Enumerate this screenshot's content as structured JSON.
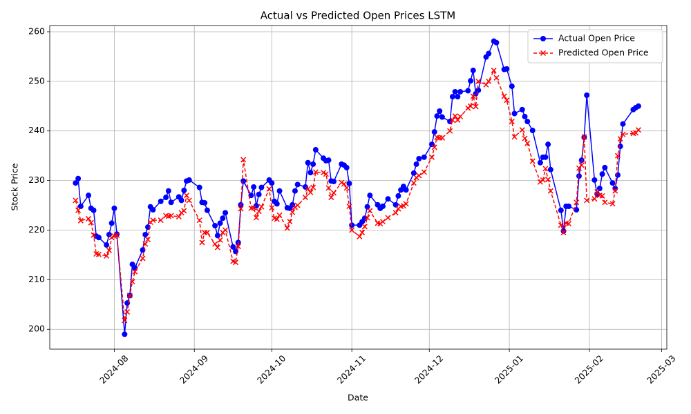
{
  "chart_data": {
    "type": "line",
    "title": "Actual vs Predicted Open Prices LSTM",
    "x_label": "Date",
    "y_label": "Stock Price",
    "grid": true,
    "legend": "upper right",
    "xlim": [
      "2024-07-07",
      "2025-03-03"
    ],
    "xticks": [
      {
        "value": "2024-08-01",
        "label": "2024-08"
      },
      {
        "value": "2024-09-01",
        "label": "2024-09"
      },
      {
        "value": "2024-10-01",
        "label": "2024-10"
      },
      {
        "value": "2024-11-01",
        "label": "2024-11"
      },
      {
        "value": "2024-12-01",
        "label": "2024-12"
      },
      {
        "value": "2025-01-01",
        "label": "2025-01"
      },
      {
        "value": "2025-02-01",
        "label": "2025-02"
      },
      {
        "value": "2025-03-01",
        "label": "2025-03"
      }
    ],
    "ylim": [
      196,
      261.25
    ],
    "yticks": [
      200,
      210,
      220,
      230,
      240,
      250,
      260
    ],
    "x": [
      "2024-07-17",
      "2024-07-18",
      "2024-07-19",
      "2024-07-22",
      "2024-07-23",
      "2024-07-24",
      "2024-07-25",
      "2024-07-26",
      "2024-07-29",
      "2024-07-30",
      "2024-07-31",
      "2024-08-01",
      "2024-08-02",
      "2024-08-05",
      "2024-08-06",
      "2024-08-07",
      "2024-08-08",
      "2024-08-09",
      "2024-08-12",
      "2024-08-13",
      "2024-08-14",
      "2024-08-15",
      "2024-08-16",
      "2024-08-19",
      "2024-08-21",
      "2024-08-22",
      "2024-08-23",
      "2024-08-26",
      "2024-08-27",
      "2024-08-28",
      "2024-08-29",
      "2024-08-30",
      "2024-09-03",
      "2024-09-04",
      "2024-09-05",
      "2024-09-06",
      "2024-09-09",
      "2024-09-10",
      "2024-09-11",
      "2024-09-12",
      "2024-09-13",
      "2024-09-16",
      "2024-09-17",
      "2024-09-18",
      "2024-09-19",
      "2024-09-20",
      "2024-09-23",
      "2024-09-24",
      "2024-09-25",
      "2024-09-26",
      "2024-09-27",
      "2024-09-30",
      "2024-10-01",
      "2024-10-02",
      "2024-10-03",
      "2024-10-04",
      "2024-10-07",
      "2024-10-08",
      "2024-10-09",
      "2024-10-10",
      "2024-10-11",
      "2024-10-14",
      "2024-10-15",
      "2024-10-16",
      "2024-10-17",
      "2024-10-18",
      "2024-10-21",
      "2024-10-22",
      "2024-10-23",
      "2024-10-24",
      "2024-10-25",
      "2024-10-28",
      "2024-10-29",
      "2024-10-30",
      "2024-10-31",
      "2024-11-01",
      "2024-11-04",
      "2024-11-05",
      "2024-11-06",
      "2024-11-07",
      "2024-11-08",
      "2024-11-11",
      "2024-11-12",
      "2024-11-13",
      "2024-11-15",
      "2024-11-18",
      "2024-11-19",
      "2024-11-20",
      "2024-11-21",
      "2024-11-22",
      "2024-11-25",
      "2024-11-26",
      "2024-11-27",
      "2024-11-29",
      "2024-12-02",
      "2024-12-03",
      "2024-12-04",
      "2024-12-05",
      "2024-12-06",
      "2024-12-09",
      "2024-12-10",
      "2024-12-11",
      "2024-12-12",
      "2024-12-13",
      "2024-12-16",
      "2024-12-17",
      "2024-12-18",
      "2024-12-19",
      "2024-12-20",
      "2024-12-23",
      "2024-12-24",
      "2024-12-26",
      "2024-12-27",
      "2024-12-30",
      "2024-12-31",
      "2025-01-02",
      "2025-01-03",
      "2025-01-06",
      "2025-01-07",
      "2025-01-08",
      "2025-01-10",
      "2025-01-13",
      "2025-01-14",
      "2025-01-15",
      "2025-01-16",
      "2025-01-17",
      "2025-01-21",
      "2025-01-22",
      "2025-01-23",
      "2025-01-24",
      "2025-01-27",
      "2025-01-28",
      "2025-01-29",
      "2025-01-30",
      "2025-01-31",
      "2025-02-03",
      "2025-02-04",
      "2025-02-05",
      "2025-02-06",
      "2025-02-07",
      "2025-02-10",
      "2025-02-11",
      "2025-02-12",
      "2025-02-13",
      "2025-02-14",
      "2025-02-18",
      "2025-02-19",
      "2025-02-20"
    ],
    "series": [
      {
        "name": "Actual Open Price",
        "color": "#0000ff",
        "marker": "circle",
        "linestyle": "solid",
        "values": [
          229.5,
          230.4,
          224.8,
          227.0,
          224.4,
          224.0,
          218.8,
          218.5,
          217.0,
          219.1,
          221.4,
          224.4,
          219.2,
          199.0,
          205.3,
          206.8,
          213.1,
          212.4,
          216.0,
          219.1,
          220.6,
          224.7,
          224.1,
          225.8,
          226.6,
          227.9,
          225.6,
          226.7,
          226.0,
          228.0,
          229.9,
          230.1,
          228.6,
          225.6,
          225.5,
          224.0,
          220.9,
          218.9,
          221.4,
          222.4,
          223.5,
          216.6,
          215.7,
          217.5,
          225.1,
          229.9,
          227.0,
          228.7,
          224.9,
          227.2,
          228.6,
          230.1,
          229.5,
          225.8,
          225.3,
          227.9,
          224.5,
          224.4,
          225.1,
          227.9,
          229.2,
          228.7,
          233.6,
          231.6,
          233.3,
          236.2,
          234.5,
          234.0,
          234.1,
          229.9,
          229.8,
          233.3,
          233.1,
          232.6,
          229.4,
          221.0,
          221.0,
          221.7,
          222.4,
          224.7,
          227.0,
          225.1,
          224.4,
          224.8,
          226.3,
          225.1,
          226.9,
          228.1,
          228.8,
          228.1,
          231.5,
          233.3,
          234.4,
          234.7,
          237.3,
          239.8,
          243.0,
          244.0,
          242.8,
          241.9,
          246.9,
          247.9,
          246.9,
          247.9,
          248.1,
          250.1,
          252.2,
          247.5,
          248.2,
          254.9,
          255.6,
          258.1,
          257.8,
          252.4,
          252.5,
          249.0,
          243.5,
          244.3,
          242.9,
          241.9,
          240.1,
          233.6,
          234.7,
          234.7,
          237.3,
          232.2,
          224.0,
          219.8,
          224.8,
          224.8,
          224.1,
          230.9,
          234.1,
          238.7,
          247.2,
          230.1,
          227.3,
          228.4,
          231.3,
          232.6,
          229.5,
          228.4,
          231.1,
          236.9,
          241.4,
          244.3,
          244.7,
          245.0
        ]
      },
      {
        "name": "Predicted Open Price",
        "color": "#ff0000",
        "marker": "x",
        "linestyle": "dashed",
        "values": [
          226.0,
          224.0,
          221.9,
          222.3,
          221.5,
          219.0,
          215.2,
          215.1,
          214.8,
          215.9,
          218.5,
          218.8,
          219.0,
          201.8,
          203.5,
          206.8,
          209.6,
          211.6,
          214.3,
          217.2,
          218.1,
          221.6,
          222.0,
          222.0,
          222.9,
          222.8,
          222.9,
          222.7,
          223.5,
          223.9,
          227.0,
          226.0,
          222.0,
          217.5,
          219.5,
          219.5,
          217.2,
          216.5,
          218.0,
          219.5,
          220.0,
          213.7,
          213.5,
          216.7,
          224.3,
          234.2,
          224.4,
          224.5,
          222.5,
          223.8,
          224.7,
          228.3,
          224.5,
          222.4,
          222.2,
          223.0,
          220.4,
          221.7,
          223.6,
          224.6,
          225.0,
          226.6,
          228.3,
          227.6,
          228.6,
          231.7,
          231.6,
          231.3,
          228.5,
          226.6,
          227.5,
          229.6,
          229.3,
          228.5,
          224.8,
          220.0,
          218.7,
          219.5,
          220.7,
          222.5,
          223.9,
          221.4,
          221.3,
          221.7,
          222.5,
          223.5,
          224.3,
          224.8,
          224.9,
          225.3,
          229.5,
          230.6,
          231.0,
          231.7,
          234.7,
          236.7,
          238.7,
          238.6,
          238.6,
          240.0,
          242.2,
          243.0,
          242.2,
          242.9,
          244.6,
          245.0,
          247.0,
          244.9,
          250.0,
          249.3,
          250.0,
          252.2,
          250.7,
          247.0,
          246.2,
          241.9,
          238.8,
          240.2,
          238.5,
          237.5,
          233.9,
          229.7,
          230.1,
          232.4,
          230.2,
          227.9,
          221.0,
          219.5,
          221.4,
          221.3,
          225.6,
          232.5,
          233.1,
          238.8,
          226.0,
          226.3,
          227.7,
          227.0,
          226.9,
          225.6,
          225.3,
          227.9,
          235.0,
          238.4,
          239.3,
          239.5,
          239.6,
          240.2
        ]
      }
    ]
  }
}
